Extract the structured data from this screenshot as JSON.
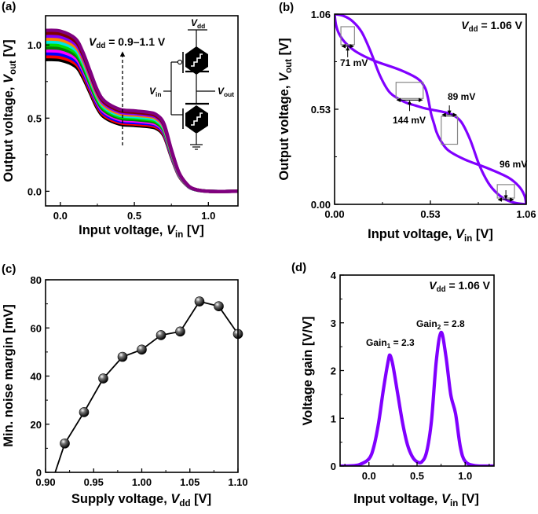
{
  "panels": {
    "a": {
      "letter": "(a)"
    },
    "b": {
      "letter": "(b)"
    },
    "c": {
      "letter": "(c)"
    },
    "d": {
      "letter": "(d)"
    }
  },
  "chart_data": [
    {
      "panel": "a",
      "type": "line",
      "xlabel": {
        "text": "Input voltage, ",
        "var": "V",
        "sub": "in",
        "unit": " [V]"
      },
      "ylabel": {
        "text": "Output voltage, ",
        "var": "V",
        "sub": "out",
        "unit": " [V]"
      },
      "xlim": [
        -0.1,
        1.2
      ],
      "ylim": [
        -0.1,
        1.2
      ],
      "xticks": [
        0,
        0.5,
        1.0
      ],
      "xtick_labels": [
        "0.0",
        "0.5",
        "1.0"
      ],
      "yticks": [
        0,
        0.5,
        1.0
      ],
      "ytick_labels": [
        "0.0",
        "0.5",
        "1.0"
      ],
      "annotation": {
        "var": "V",
        "sub": "dd",
        "text": " = 0.9–1.1 V"
      },
      "circuit_labels": {
        "vdd": {
          "var": "V",
          "sub": "dd"
        },
        "vin": {
          "var": "V",
          "sub": "in"
        },
        "vout": {
          "var": "V",
          "sub": "out"
        }
      },
      "x": [
        -0.1,
        0,
        0.1,
        0.15,
        0.2,
        0.25,
        0.3,
        0.4,
        0.5,
        0.6,
        0.65,
        0.7,
        0.75,
        0.8,
        0.85,
        0.9,
        1.0,
        1.2
      ],
      "series": [
        {
          "vdd": 0.9,
          "color": "#000000",
          "y": [
            0.9,
            0.896,
            0.855,
            0.783,
            0.675,
            0.567,
            0.504,
            0.459,
            0.45,
            0.441,
            0.428,
            0.378,
            0.234,
            0.108,
            0.045,
            0.014,
            0,
            0
          ]
        },
        {
          "vdd": 0.92,
          "color": "#ff0000",
          "y": [
            0.92,
            0.915,
            0.874,
            0.8,
            0.69,
            0.58,
            0.515,
            0.469,
            0.46,
            0.451,
            0.437,
            0.386,
            0.239,
            0.11,
            0.046,
            0.014,
            0,
            0
          ]
        },
        {
          "vdd": 0.94,
          "color": "#0000ff",
          "y": [
            0.94,
            0.935,
            0.893,
            0.818,
            0.705,
            0.592,
            0.526,
            0.479,
            0.47,
            0.461,
            0.447,
            0.395,
            0.244,
            0.113,
            0.047,
            0.014,
            0,
            0
          ]
        },
        {
          "vdd": 0.96,
          "color": "#ff00ff",
          "y": [
            0.96,
            0.955,
            0.912,
            0.835,
            0.72,
            0.605,
            0.538,
            0.49,
            0.48,
            0.47,
            0.456,
            0.403,
            0.25,
            0.115,
            0.048,
            0.014,
            0,
            0
          ]
        },
        {
          "vdd": 0.98,
          "color": "#008000",
          "y": [
            0.98,
            0.975,
            0.931,
            0.853,
            0.735,
            0.617,
            0.549,
            0.5,
            0.49,
            0.48,
            0.466,
            0.412,
            0.255,
            0.118,
            0.049,
            0.015,
            0,
            0
          ]
        },
        {
          "vdd": 1.0,
          "color": "#00dd00",
          "y": [
            1.0,
            0.995,
            0.95,
            0.87,
            0.75,
            0.63,
            0.56,
            0.51,
            0.5,
            0.49,
            0.475,
            0.42,
            0.26,
            0.12,
            0.05,
            0.015,
            0,
            0
          ]
        },
        {
          "vdd": 1.02,
          "color": "#00e5e5",
          "y": [
            1.02,
            1.015,
            0.969,
            0.887,
            0.765,
            0.643,
            0.571,
            0.52,
            0.51,
            0.5,
            0.485,
            0.428,
            0.265,
            0.122,
            0.051,
            0.015,
            0,
            0
          ]
        },
        {
          "vdd": 1.04,
          "color": "#ff8000",
          "y": [
            1.04,
            1.035,
            0.988,
            0.905,
            0.78,
            0.655,
            0.582,
            0.53,
            0.52,
            0.51,
            0.494,
            0.437,
            0.27,
            0.125,
            0.052,
            0.016,
            0,
            0
          ]
        },
        {
          "vdd": 1.06,
          "color": "#8000ff",
          "y": [
            1.06,
            1.055,
            1.007,
            0.922,
            0.795,
            0.668,
            0.594,
            0.541,
            0.53,
            0.519,
            0.504,
            0.445,
            0.276,
            0.127,
            0.053,
            0.016,
            0,
            0
          ]
        },
        {
          "vdd": 1.08,
          "color": "#800000",
          "y": [
            1.08,
            1.075,
            1.026,
            0.94,
            0.81,
            0.68,
            0.605,
            0.551,
            0.54,
            0.529,
            0.513,
            0.454,
            0.281,
            0.13,
            0.054,
            0.016,
            0,
            0
          ]
        },
        {
          "vdd": 1.1,
          "color": "#800080",
          "y": [
            1.1,
            1.095,
            1.045,
            0.957,
            0.825,
            0.693,
            0.616,
            0.561,
            0.55,
            0.539,
            0.523,
            0.462,
            0.286,
            0.132,
            0.055,
            0.017,
            0,
            0
          ]
        }
      ]
    },
    {
      "panel": "b",
      "type": "line",
      "xlabel": {
        "text": "Input voltage, ",
        "var": "V",
        "sub": "in",
        "unit": " [V]"
      },
      "ylabel": {
        "text": "Output voltage, ",
        "var": "V",
        "sub": "out",
        "unit": " [V]"
      },
      "xlim": [
        0,
        1.06
      ],
      "ylim": [
        0,
        1.06
      ],
      "xticks": [
        0,
        0.53,
        1.06
      ],
      "xtick_labels": [
        "0.00",
        "0.53",
        "1.06"
      ],
      "yticks": [
        0,
        0.53,
        1.06
      ],
      "ytick_labels": [
        "0.00",
        "0.53",
        "1.06"
      ],
      "annotation": {
        "var": "V",
        "sub": "dd",
        "text": " = 1.06 V"
      },
      "color": "#8000ff",
      "x": [
        0,
        0.05,
        0.1,
        0.15,
        0.2,
        0.25,
        0.3,
        0.35,
        0.4,
        0.45,
        0.5,
        0.55,
        0.6,
        0.65,
        0.7,
        0.75,
        0.8,
        0.85,
        0.9,
        0.95,
        1.0,
        1.06
      ],
      "y": [
        1.06,
        1.05,
        1.02,
        0.96,
        0.85,
        0.72,
        0.63,
        0.59,
        0.565,
        0.55,
        0.535,
        0.525,
        0.515,
        0.5,
        0.46,
        0.36,
        0.22,
        0.12,
        0.06,
        0.025,
        0.008,
        0
      ],
      "mirrored": true,
      "noise_margins": [
        "71 mV",
        "144 mV",
        "89 mV",
        "96 mV"
      ]
    },
    {
      "panel": "c",
      "type": "line",
      "xlabel": {
        "text": "Supply voltage, ",
        "var": "V",
        "sub": "dd",
        "unit": " [V]"
      },
      "ylabel": {
        "text": "Min. noise margin [mV]"
      },
      "xlim": [
        0.9,
        1.1
      ],
      "ylim": [
        0,
        80
      ],
      "xticks": [
        0.9,
        0.95,
        1.0,
        1.05,
        1.1
      ],
      "xtick_labels": [
        "0.90",
        "0.95",
        "1.00",
        "1.05",
        "1.10"
      ],
      "yticks": [
        0,
        20,
        40,
        60,
        80
      ],
      "ytick_labels": [
        "0",
        "20",
        "40",
        "60",
        "80"
      ],
      "line_start": [
        0.91,
        0
      ],
      "x": [
        0.92,
        0.94,
        0.96,
        0.98,
        1.0,
        1.02,
        1.04,
        1.06,
        1.08,
        1.1
      ],
      "y": [
        12,
        25,
        39,
        48,
        51,
        57,
        58.5,
        71,
        69,
        57.5
      ]
    },
    {
      "panel": "d",
      "type": "line",
      "xlabel": {
        "text": "Input voltage, ",
        "var": "V",
        "sub": "in",
        "unit": " [V]"
      },
      "ylabel": {
        "text": "Voltage gain [V/V]"
      },
      "xlim": [
        -0.3,
        1.3
      ],
      "ylim": [
        0,
        4
      ],
      "xticks": [
        0,
        0.5,
        1.0
      ],
      "xtick_labels": [
        "0.0",
        "0.5",
        "1.0"
      ],
      "yticks": [
        0,
        1,
        2,
        3,
        4
      ],
      "ytick_labels": [
        "0",
        "1",
        "2",
        "3",
        "4"
      ],
      "annotation": {
        "var": "V",
        "sub": "dd",
        "text": " = 1.06 V"
      },
      "color": "#8000ff",
      "peaks": [
        {
          "text": "Gain",
          "sub": "1",
          "value": " = 2.3"
        },
        {
          "text": "Gain",
          "sub": "2",
          "value": " = 2.8"
        }
      ],
      "x": [
        -0.3,
        -0.2,
        -0.1,
        0,
        0.05,
        0.1,
        0.15,
        0.2,
        0.22,
        0.25,
        0.3,
        0.35,
        0.4,
        0.45,
        0.5,
        0.55,
        0.6,
        0.65,
        0.7,
        0.75,
        0.8,
        0.85,
        0.9,
        0.95,
        1.0,
        1.1,
        1.3
      ],
      "y": [
        0,
        0.005,
        0.03,
        0.15,
        0.4,
        0.9,
        1.6,
        2.2,
        2.32,
        2.1,
        1.5,
        0.9,
        0.45,
        0.2,
        0.09,
        0.09,
        0.3,
        0.95,
        2.2,
        2.8,
        2.3,
        1.5,
        1.1,
        0.4,
        0.1,
        0.01,
        0
      ]
    }
  ]
}
